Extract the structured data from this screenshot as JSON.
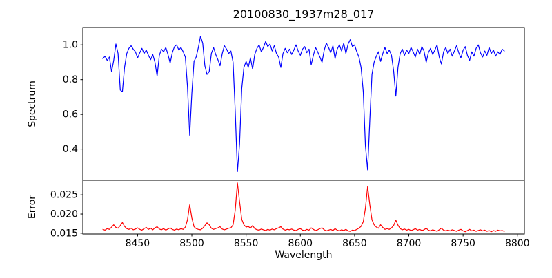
{
  "chart_data": {
    "type": "line",
    "title": "20100830_1937m28_017",
    "xlabel": "Wavelength",
    "grid": false,
    "legend": "none",
    "x_start": 8418,
    "x_step": 2,
    "xlim": [
      8399.5,
      8806.5
    ],
    "xticks": [
      8450,
      8500,
      8550,
      8600,
      8650,
      8700,
      8750,
      8800
    ],
    "absorption_line_centers": [
      8498,
      8542,
      8662,
      8688
    ],
    "panels": [
      {
        "name": "spectrum",
        "ylabel": "Spectrum",
        "color": "#0000ff",
        "ylim": [
          0.22,
          1.1
        ],
        "ytick_values": [
          0.4,
          0.6,
          0.8,
          1.0
        ],
        "ytick_labels": [
          "0.4",
          "0.6",
          "0.8",
          "1.0"
        ],
        "values": [
          0.92,
          0.935,
          0.91,
          0.93,
          0.845,
          0.91,
          1.005,
          0.95,
          0.74,
          0.73,
          0.87,
          0.95,
          0.98,
          0.995,
          0.975,
          0.96,
          0.925,
          0.955,
          0.98,
          0.95,
          0.97,
          0.94,
          0.915,
          0.945,
          0.9,
          0.82,
          0.94,
          0.975,
          0.96,
          0.985,
          0.945,
          0.895,
          0.955,
          0.99,
          1.0,
          0.97,
          0.985,
          0.96,
          0.93,
          0.76,
          0.48,
          0.72,
          0.905,
          0.93,
          0.985,
          1.05,
          1.01,
          0.88,
          0.83,
          0.845,
          0.95,
          0.985,
          0.945,
          0.915,
          0.88,
          0.95,
          0.995,
          0.975,
          0.95,
          0.965,
          0.9,
          0.62,
          0.27,
          0.43,
          0.75,
          0.87,
          0.905,
          0.87,
          0.925,
          0.86,
          0.945,
          0.98,
          1.0,
          0.96,
          0.985,
          1.02,
          0.99,
          1.005,
          0.965,
          0.995,
          0.95,
          0.93,
          0.87,
          0.95,
          0.98,
          0.955,
          0.975,
          0.945,
          0.97,
          1.0,
          0.965,
          0.94,
          0.975,
          0.99,
          0.955,
          0.975,
          0.885,
          0.94,
          0.985,
          0.96,
          0.93,
          0.9,
          0.97,
          1.01,
          0.985,
          0.955,
          0.995,
          0.92,
          0.975,
          1.0,
          0.965,
          1.01,
          0.95,
          1.005,
          1.03,
          0.99,
          1.0,
          0.96,
          0.93,
          0.87,
          0.73,
          0.42,
          0.28,
          0.56,
          0.83,
          0.9,
          0.935,
          0.96,
          0.905,
          0.95,
          0.985,
          0.95,
          0.97,
          0.94,
          0.85,
          0.705,
          0.87,
          0.95,
          0.975,
          0.94,
          0.97,
          0.95,
          0.985,
          0.96,
          0.93,
          0.975,
          0.945,
          0.99,
          0.965,
          0.9,
          0.955,
          0.98,
          0.945,
          0.97,
          1.0,
          0.93,
          0.89,
          0.96,
          0.985,
          0.95,
          0.975,
          0.935,
          0.965,
          0.995,
          0.955,
          0.925,
          0.97,
          0.99,
          0.94,
          0.91,
          0.96,
          0.935,
          0.98,
          1.0,
          0.955,
          0.93,
          0.965,
          0.94,
          0.985,
          0.95,
          0.97,
          0.935,
          0.96,
          0.945,
          0.975,
          0.965
        ]
      },
      {
        "name": "error",
        "ylabel": "Error",
        "color": "#ff0000",
        "ylim": [
          0.0148,
          0.0288
        ],
        "ytick_values": [
          0.015,
          0.02,
          0.025
        ],
        "ytick_labels": [
          "0.015",
          "0.020",
          "0.025"
        ],
        "values": [
          0.016,
          0.0158,
          0.0162,
          0.016,
          0.0166,
          0.0172,
          0.0165,
          0.0163,
          0.017,
          0.0178,
          0.0168,
          0.0162,
          0.016,
          0.0163,
          0.0159,
          0.0161,
          0.0164,
          0.016,
          0.0158,
          0.0162,
          0.0165,
          0.016,
          0.0163,
          0.0159,
          0.0164,
          0.0167,
          0.0161,
          0.0159,
          0.0162,
          0.0158,
          0.0161,
          0.0164,
          0.016,
          0.0158,
          0.0161,
          0.0159,
          0.0162,
          0.016,
          0.0166,
          0.0185,
          0.0224,
          0.019,
          0.0167,
          0.0162,
          0.016,
          0.0159,
          0.0163,
          0.017,
          0.0177,
          0.0172,
          0.0163,
          0.016,
          0.0162,
          0.0164,
          0.0167,
          0.0161,
          0.0159,
          0.0161,
          0.0163,
          0.0164,
          0.0172,
          0.021,
          0.0281,
          0.0232,
          0.0186,
          0.0172,
          0.0166,
          0.0168,
          0.0163,
          0.017,
          0.0162,
          0.0159,
          0.0158,
          0.0161,
          0.0159,
          0.0157,
          0.016,
          0.0158,
          0.0161,
          0.0159,
          0.0162,
          0.0164,
          0.0167,
          0.0161,
          0.0158,
          0.016,
          0.0159,
          0.0161,
          0.0158,
          0.0157,
          0.016,
          0.0162,
          0.0158,
          0.0157,
          0.016,
          0.0158,
          0.0164,
          0.016,
          0.0157,
          0.0159,
          0.0162,
          0.0164,
          0.0159,
          0.0156,
          0.0158,
          0.016,
          0.0157,
          0.0162,
          0.0158,
          0.0156,
          0.0159,
          0.0157,
          0.016,
          0.0156,
          0.0155,
          0.0158,
          0.0157,
          0.016,
          0.0163,
          0.0168,
          0.018,
          0.0215,
          0.0272,
          0.0225,
          0.0185,
          0.0172,
          0.0166,
          0.0163,
          0.0172,
          0.0165,
          0.016,
          0.0162,
          0.016,
          0.0164,
          0.017,
          0.0184,
          0.0171,
          0.0162,
          0.0159,
          0.0161,
          0.0158,
          0.016,
          0.0157,
          0.0159,
          0.0162,
          0.0158,
          0.016,
          0.0157,
          0.0159,
          0.0163,
          0.0158,
          0.0156,
          0.0159,
          0.0157,
          0.0155,
          0.0159,
          0.0163,
          0.0158,
          0.0156,
          0.0158,
          0.0156,
          0.0159,
          0.0157,
          0.0155,
          0.0158,
          0.016,
          0.0156,
          0.0154,
          0.0157,
          0.016,
          0.0156,
          0.0158,
          0.0155,
          0.0157,
          0.0159,
          0.0156,
          0.0158,
          0.0155,
          0.0157,
          0.0154,
          0.0157,
          0.0155,
          0.0158,
          0.0156,
          0.0157,
          0.0155
        ]
      }
    ]
  }
}
